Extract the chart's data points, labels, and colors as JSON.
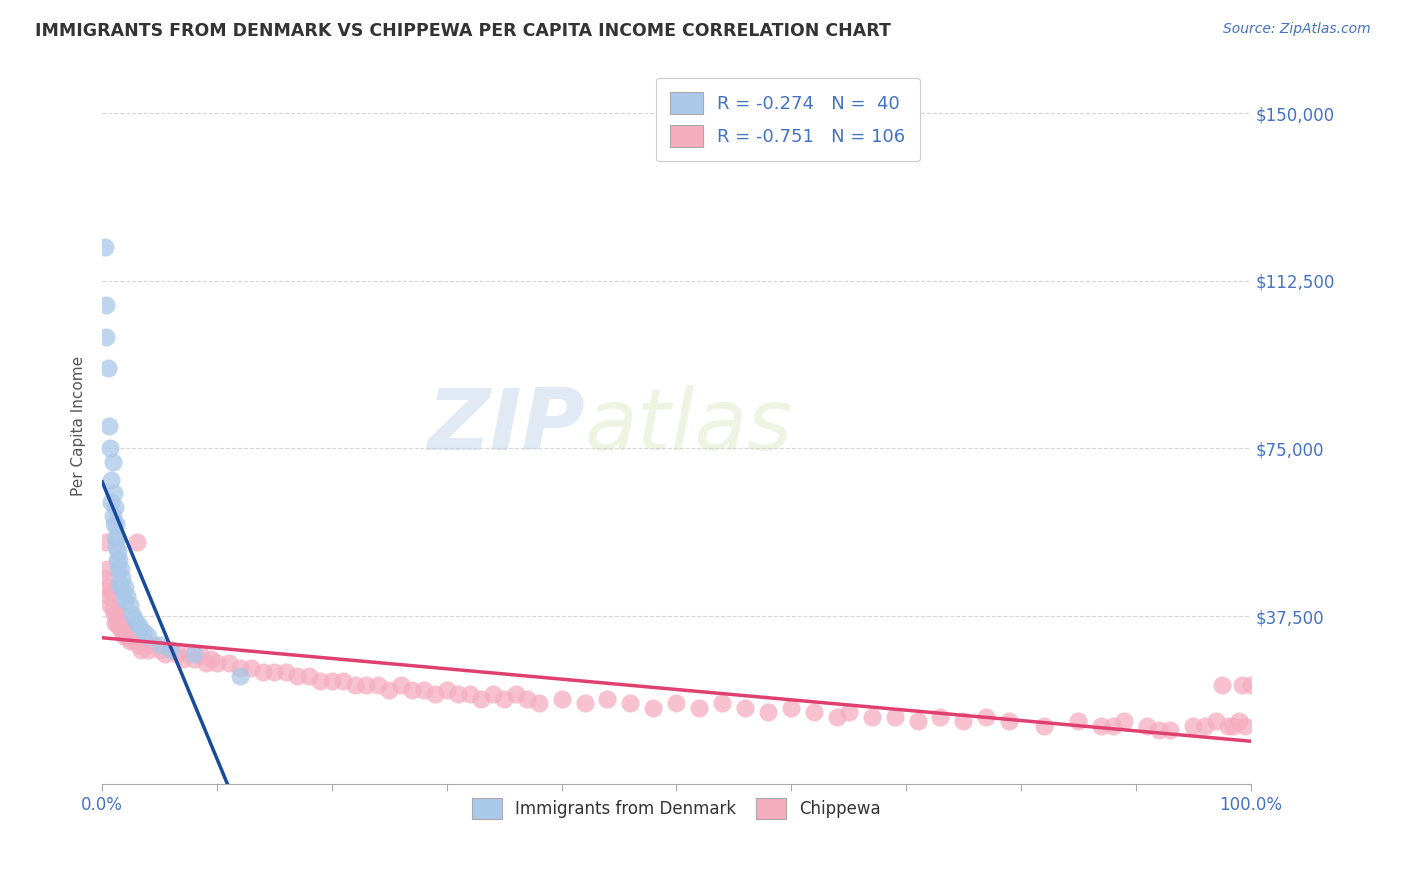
{
  "title": "IMMIGRANTS FROM DENMARK VS CHIPPEWA PER CAPITA INCOME CORRELATION CHART",
  "source_text": "Source: ZipAtlas.com",
  "ylabel": "Per Capita Income",
  "xlim": [
    0.0,
    1.0
  ],
  "ylim": [
    0,
    160000
  ],
  "yticks": [
    0,
    37500,
    75000,
    112500,
    150000
  ],
  "ytick_labels": [
    "",
    "$37,500",
    "$75,000",
    "$112,500",
    "$150,000"
  ],
  "xticks": [
    0.0,
    0.1,
    0.2,
    0.3,
    0.4,
    0.5,
    0.6,
    0.7,
    0.8,
    0.9,
    1.0
  ],
  "xtick_labels": [
    "0.0%",
    "",
    "",
    "",
    "",
    "",
    "",
    "",
    "",
    "",
    "100.0%"
  ],
  "title_color": "#333333",
  "title_fontsize": 12.5,
  "source_color": "#4472c4",
  "axis_color": "#4472c4",
  "background_color": "#ffffff",
  "grid_color": "#cccccc",
  "denmark_color": "#aac8e8",
  "chippewa_color": "#f5adc0",
  "denmark_line_color": "#1a4b9b",
  "chippewa_line_color": "#e04070",
  "denmark_dashed_color": "#bbbbbb",
  "denmark_R": -0.274,
  "denmark_N": 40,
  "chippewa_R": -0.751,
  "chippewa_N": 106,
  "watermark_zip": "ZIP",
  "watermark_atlas": "atlas",
  "legend_label_denmark": "Immigrants from Denmark",
  "legend_label_chippewa": "Chippewa",
  "denmark_points": [
    [
      0.002,
      120000
    ],
    [
      0.003,
      107000
    ],
    [
      0.003,
      100000
    ],
    [
      0.005,
      93000
    ],
    [
      0.006,
      80000
    ],
    [
      0.007,
      75000
    ],
    [
      0.008,
      68000
    ],
    [
      0.008,
      63000
    ],
    [
      0.009,
      72000
    ],
    [
      0.009,
      60000
    ],
    [
      0.01,
      58000
    ],
    [
      0.01,
      65000
    ],
    [
      0.011,
      55000
    ],
    [
      0.011,
      62000
    ],
    [
      0.012,
      58000
    ],
    [
      0.012,
      53000
    ],
    [
      0.013,
      55000
    ],
    [
      0.013,
      50000
    ],
    [
      0.014,
      52000
    ],
    [
      0.014,
      48000
    ],
    [
      0.015,
      50000
    ],
    [
      0.015,
      45000
    ],
    [
      0.016,
      48000
    ],
    [
      0.016,
      44000
    ],
    [
      0.017,
      46000
    ],
    [
      0.018,
      43000
    ],
    [
      0.02,
      44000
    ],
    [
      0.02,
      41000
    ],
    [
      0.022,
      42000
    ],
    [
      0.024,
      40000
    ],
    [
      0.026,
      38000
    ],
    [
      0.028,
      37000
    ],
    [
      0.03,
      36000
    ],
    [
      0.033,
      35000
    ],
    [
      0.036,
      34000
    ],
    [
      0.04,
      33000
    ],
    [
      0.05,
      31000
    ],
    [
      0.06,
      30000
    ],
    [
      0.08,
      29000
    ],
    [
      0.12,
      24000
    ]
  ],
  "chippewa_points": [
    [
      0.002,
      46000
    ],
    [
      0.003,
      54000
    ],
    [
      0.004,
      48000
    ],
    [
      0.005,
      44000
    ],
    [
      0.006,
      42000
    ],
    [
      0.007,
      40000
    ],
    [
      0.008,
      43000
    ],
    [
      0.009,
      39000
    ],
    [
      0.01,
      38000
    ],
    [
      0.011,
      36000
    ],
    [
      0.012,
      39000
    ],
    [
      0.013,
      36000
    ],
    [
      0.014,
      37000
    ],
    [
      0.015,
      35000
    ],
    [
      0.016,
      36000
    ],
    [
      0.017,
      34000
    ],
    [
      0.018,
      35000
    ],
    [
      0.019,
      33000
    ],
    [
      0.02,
      34000
    ],
    [
      0.022,
      33000
    ],
    [
      0.024,
      32000
    ],
    [
      0.026,
      33000
    ],
    [
      0.028,
      32000
    ],
    [
      0.03,
      54000
    ],
    [
      0.032,
      31000
    ],
    [
      0.034,
      30000
    ],
    [
      0.036,
      32000
    ],
    [
      0.038,
      31000
    ],
    [
      0.04,
      30000
    ],
    [
      0.045,
      31000
    ],
    [
      0.05,
      30000
    ],
    [
      0.055,
      29000
    ],
    [
      0.06,
      30000
    ],
    [
      0.065,
      29000
    ],
    [
      0.07,
      28000
    ],
    [
      0.075,
      29000
    ],
    [
      0.08,
      28000
    ],
    [
      0.085,
      29000
    ],
    [
      0.09,
      27000
    ],
    [
      0.095,
      28000
    ],
    [
      0.1,
      27000
    ],
    [
      0.11,
      27000
    ],
    [
      0.12,
      26000
    ],
    [
      0.13,
      26000
    ],
    [
      0.14,
      25000
    ],
    [
      0.15,
      25000
    ],
    [
      0.16,
      25000
    ],
    [
      0.17,
      24000
    ],
    [
      0.18,
      24000
    ],
    [
      0.19,
      23000
    ],
    [
      0.2,
      23000
    ],
    [
      0.21,
      23000
    ],
    [
      0.22,
      22000
    ],
    [
      0.23,
      22000
    ],
    [
      0.24,
      22000
    ],
    [
      0.25,
      21000
    ],
    [
      0.26,
      22000
    ],
    [
      0.27,
      21000
    ],
    [
      0.28,
      21000
    ],
    [
      0.29,
      20000
    ],
    [
      0.3,
      21000
    ],
    [
      0.31,
      20000
    ],
    [
      0.32,
      20000
    ],
    [
      0.33,
      19000
    ],
    [
      0.34,
      20000
    ],
    [
      0.35,
      19000
    ],
    [
      0.36,
      20000
    ],
    [
      0.37,
      19000
    ],
    [
      0.38,
      18000
    ],
    [
      0.4,
      19000
    ],
    [
      0.42,
      18000
    ],
    [
      0.44,
      19000
    ],
    [
      0.46,
      18000
    ],
    [
      0.48,
      17000
    ],
    [
      0.5,
      18000
    ],
    [
      0.52,
      17000
    ],
    [
      0.54,
      18000
    ],
    [
      0.56,
      17000
    ],
    [
      0.58,
      16000
    ],
    [
      0.6,
      17000
    ],
    [
      0.62,
      16000
    ],
    [
      0.64,
      15000
    ],
    [
      0.65,
      16000
    ],
    [
      0.67,
      15000
    ],
    [
      0.69,
      15000
    ],
    [
      0.71,
      14000
    ],
    [
      0.73,
      15000
    ],
    [
      0.75,
      14000
    ],
    [
      0.77,
      15000
    ],
    [
      0.79,
      14000
    ],
    [
      0.82,
      13000
    ],
    [
      0.85,
      14000
    ],
    [
      0.87,
      13000
    ],
    [
      0.89,
      14000
    ],
    [
      0.91,
      13000
    ],
    [
      0.93,
      12000
    ],
    [
      0.95,
      13000
    ],
    [
      0.97,
      14000
    ],
    [
      0.98,
      13000
    ],
    [
      0.99,
      14000
    ],
    [
      0.995,
      13000
    ],
    [
      1.0,
      22000
    ],
    [
      0.88,
      13000
    ],
    [
      0.92,
      12000
    ],
    [
      0.96,
      13000
    ],
    [
      0.975,
      22000
    ],
    [
      0.985,
      13000
    ],
    [
      0.993,
      22000
    ]
  ]
}
